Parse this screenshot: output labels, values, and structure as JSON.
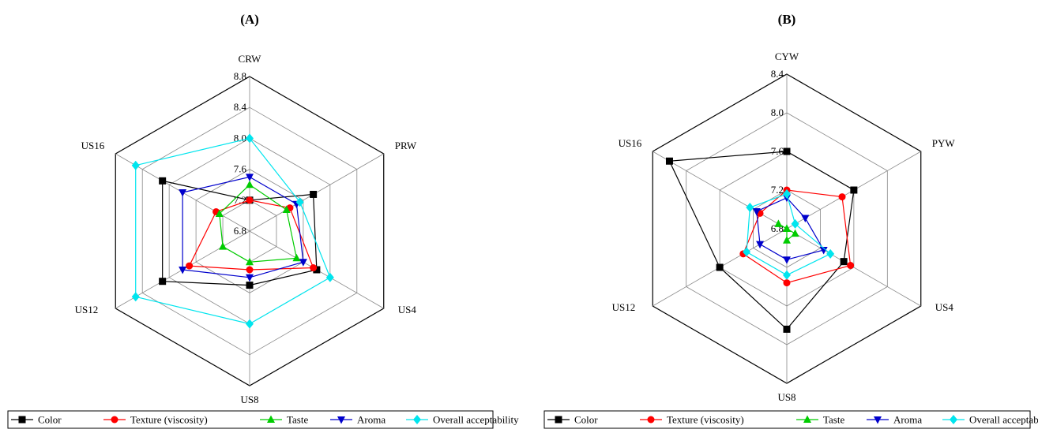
{
  "chart_data": [
    {
      "type": "radar",
      "panel_label": "(A)",
      "axes": [
        "CRW",
        "PRW",
        "US4",
        "US8",
        "US12",
        "US16"
      ],
      "rlim": [
        6.8,
        8.8
      ],
      "ticks": [
        "6.8",
        "7.2",
        "7.6",
        "8.0",
        "8.4",
        "8.8"
      ],
      "series": [
        {
          "name": "Color",
          "values": [
            7.2,
            7.75,
            7.8,
            7.5,
            8.1,
            8.1
          ]
        },
        {
          "name": "Texture (viscosity)",
          "values": [
            7.2,
            7.4,
            7.75,
            7.3,
            7.7,
            7.3
          ]
        },
        {
          "name": "Taste",
          "values": [
            7.4,
            7.35,
            7.5,
            7.2,
            7.2,
            7.25
          ]
        },
        {
          "name": "Aroma",
          "values": [
            7.5,
            7.5,
            7.6,
            7.4,
            7.8,
            7.8
          ]
        },
        {
          "name": "Overall acceptability",
          "values": [
            8.0,
            7.55,
            8.0,
            8.0,
            8.5,
            8.5
          ]
        }
      ],
      "legend_position": "bottom"
    },
    {
      "type": "radar",
      "panel_label": "(B)",
      "axes": [
        "CYW",
        "PYW",
        "US4",
        "US8",
        "US12",
        "US16"
      ],
      "rlim": [
        6.8,
        8.4
      ],
      "ticks": [
        "6.8",
        "7.2",
        "7.6",
        "8.0",
        "8.4"
      ],
      "series": [
        {
          "name": "Color",
          "values": [
            7.6,
            7.6,
            7.48,
            7.84,
            7.6,
            8.2
          ]
        },
        {
          "name": "Texture (viscosity)",
          "values": [
            7.2,
            7.46,
            7.56,
            7.36,
            7.32,
            7.12
          ]
        },
        {
          "name": "Taste",
          "values": [
            6.8,
            6.8,
            6.9,
            6.92,
            6.8,
            6.9
          ]
        },
        {
          "name": "Aroma",
          "values": [
            7.12,
            7.02,
            7.24,
            7.12,
            7.12,
            7.16
          ]
        },
        {
          "name": "Overall acceptability",
          "values": [
            7.16,
            6.9,
            7.32,
            7.28,
            7.28,
            7.24
          ]
        }
      ],
      "legend_position": "bottom"
    }
  ],
  "colors": {
    "Color": "#000000",
    "Texture (viscosity)": "#ff0000",
    "Taste": "#00cc00",
    "Aroma": "#0000cc",
    "Overall acceptability": "#00e5ee"
  },
  "markers": {
    "Color": "square",
    "Texture (viscosity)": "circle",
    "Taste": "triangle-up",
    "Aroma": "triangle-down",
    "Overall acceptability": "diamond"
  }
}
